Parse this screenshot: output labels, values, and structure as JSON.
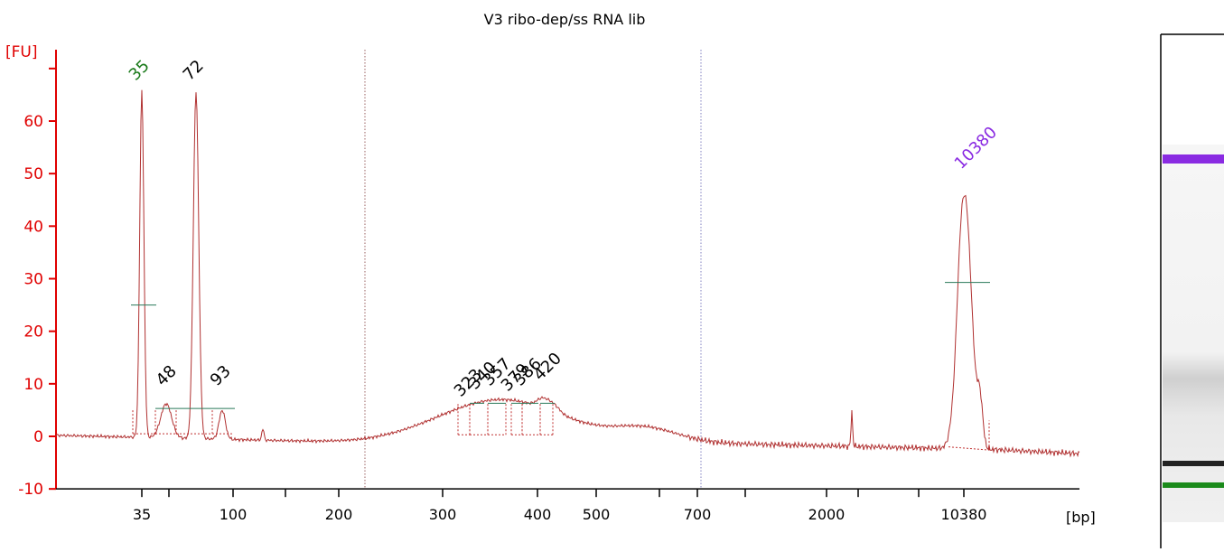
{
  "chart_data": {
    "type": "line",
    "title": "V3 ribo-dep/ss RNA lib",
    "ylabel": "[FU]",
    "xlabel": "[bp]",
    "ylim": [
      -10,
      70
    ],
    "y_ticks": [
      -10,
      0,
      10,
      20,
      30,
      40,
      50,
      60
    ],
    "x_tick_labels": [
      "35",
      "100",
      "200",
      "300",
      "400",
      "500",
      "700",
      "2000",
      "10380"
    ],
    "peaks": [
      {
        "label": "35",
        "value": 66,
        "color": "#1a7a1a"
      },
      {
        "label": "72",
        "value": 66,
        "color": "#000000"
      },
      {
        "label": "48",
        "value": 8,
        "color": "#000000"
      },
      {
        "label": "93",
        "value": 7,
        "color": "#000000"
      },
      {
        "label": "323",
        "value": 8,
        "color": "#000000"
      },
      {
        "label": "340",
        "value": 8.5,
        "color": "#000000"
      },
      {
        "label": "357",
        "value": 9,
        "color": "#000000"
      },
      {
        "label": "379",
        "value": 8.5,
        "color": "#000000"
      },
      {
        "label": "386",
        "value": 8.5,
        "color": "#000000"
      },
      {
        "label": "420",
        "value": 10,
        "color": "#000000"
      },
      {
        "label": "10380",
        "value": 49,
        "color": "#8a2be2"
      }
    ],
    "grid": false,
    "legend": "none"
  },
  "colors": {
    "axis": "#e00000",
    "trace": "#b03030",
    "marker_upper": "#8a2be2",
    "marker_lower": "#1a8a1a",
    "band": "#222222"
  }
}
